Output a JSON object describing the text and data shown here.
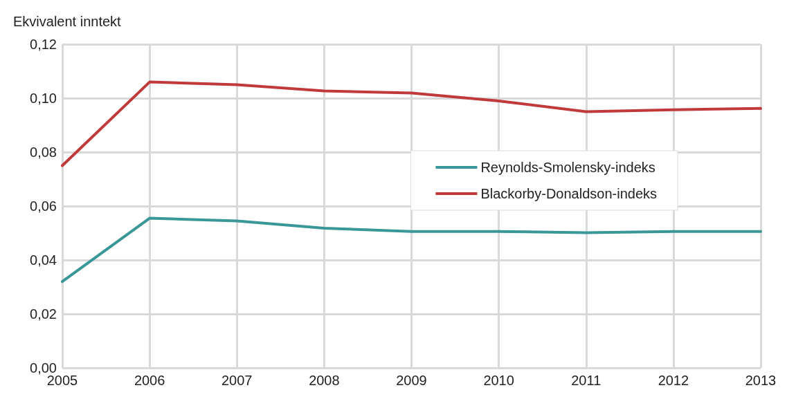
{
  "chart_data": {
    "type": "line",
    "ylabel": "Ekvivalent inntekt",
    "categories": [
      "2005",
      "2006",
      "2007",
      "2008",
      "2009",
      "2010",
      "2011",
      "2012",
      "2013"
    ],
    "series": [
      {
        "name": "Reynolds-Smolensky-indeks",
        "color": "#3a9797",
        "values": [
          0.032,
          0.0555,
          0.0545,
          0.0518,
          0.0506,
          0.0506,
          0.0501,
          0.0506,
          0.0506
        ]
      },
      {
        "name": "Blackorby-Donaldson-indeks",
        "color": "#c0393b",
        "values": [
          0.075,
          0.106,
          0.105,
          0.1027,
          0.1019,
          0.099,
          0.095,
          0.0957,
          0.0962
        ]
      }
    ],
    "ylim": [
      0,
      0.12
    ],
    "yticks": [
      {
        "value": 0,
        "label": "0,00"
      },
      {
        "value": 0.02,
        "label": "0,02"
      },
      {
        "value": 0.04,
        "label": "0,04"
      },
      {
        "value": 0.06,
        "label": "0,06"
      },
      {
        "value": 0.08,
        "label": "0,08"
      },
      {
        "value": 0.1,
        "label": "0,10"
      },
      {
        "value": 0.12,
        "label": "0,12"
      }
    ],
    "grid": true,
    "legend": "right",
    "marker": "none",
    "line_style": "solid"
  }
}
